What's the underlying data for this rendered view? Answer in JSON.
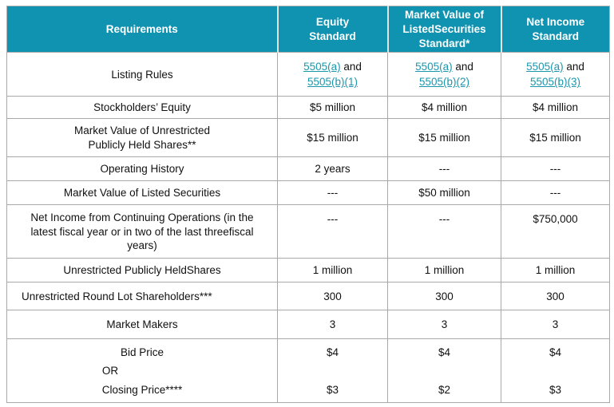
{
  "header": {
    "requirements": "Requirements",
    "equity": "Equity\nStandard",
    "market_value_listed": "Market Value of\nListedSecurities\nStandard*",
    "net_income": "Net Income\nStandard"
  },
  "listing_rules": {
    "label": "Listing Rules",
    "conjunction": "and",
    "equity": {
      "rule_a": "5505(a)",
      "rule_b": "5505(b)(1)"
    },
    "market_value": {
      "rule_a": "5505(a)",
      "rule_b": "5505(b)(2)"
    },
    "net_income": {
      "rule_a": "5505(a)",
      "rule_b": "5505(b)(3)"
    }
  },
  "rows": [
    {
      "label": "Stockholders’ Equity",
      "values": [
        "$5 million",
        "$4 million",
        "$4 million"
      ]
    },
    {
      "label": "Market Value of Unrestricted\nPublicly Held Shares**",
      "values": [
        "$15 million",
        "$15 million",
        "$15 million"
      ]
    },
    {
      "label": "Operating History",
      "values": [
        "2 years",
        "---",
        "---"
      ]
    },
    {
      "label": "Market Value of Listed Securities",
      "values": [
        "---",
        "$50 million",
        "---"
      ]
    },
    {
      "label": "Net Income from Continuing  Operations (in the\nlatest fiscal year or in two of the last threefiscal\nyears)",
      "values": [
        "---",
        "---",
        "$750,000"
      ]
    },
    {
      "label": "Unrestricted Publicly HeldShares",
      "values": [
        "1 million",
        "1 million",
        "1 million"
      ]
    },
    {
      "label": "Unrestricted Round Lot Shareholders***",
      "values": [
        "300",
        "300",
        "300"
      ]
    },
    {
      "label": "Market Makers",
      "values": [
        "3",
        "3",
        "3"
      ]
    }
  ],
  "price_row": {
    "bid_label": "Bid Price",
    "or_label": "OR",
    "closing_label": "Closing Price****",
    "equity": {
      "bid": "$4",
      "closing": "$3"
    },
    "market_value": {
      "bid": "$4",
      "closing": "$2"
    },
    "net_income": {
      "bid": "$4",
      "closing": "$3"
    }
  },
  "colors": {
    "header_bg": "#0f93b1",
    "link": "#1b96ad",
    "border": "#a9a9a9",
    "header_text": "#ffffff",
    "body_text": "#111111"
  }
}
